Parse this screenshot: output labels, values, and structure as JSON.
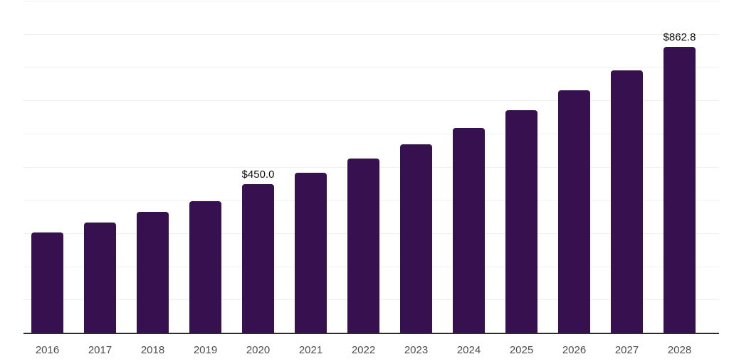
{
  "chart_data": {
    "type": "bar",
    "title": "",
    "xlabel": "",
    "ylabel": "",
    "categories": [
      "2016",
      "2017",
      "2018",
      "2019",
      "2020",
      "2021",
      "2022",
      "2023",
      "2024",
      "2025",
      "2026",
      "2027",
      "2028"
    ],
    "values": [
      304,
      334,
      366,
      399,
      450.0,
      483,
      526,
      570,
      619,
      672,
      732,
      793,
      862.8
    ],
    "value_labels": [
      "",
      "",
      "",
      "",
      "$450.0",
      "",
      "",
      "",
      "",
      "",
      "",
      "",
      "$862.8"
    ],
    "ylim": [
      0,
      1000
    ],
    "grid_step": 100,
    "grid": "horizontal",
    "legend": "none",
    "bar_color": "#37114f",
    "grid_color": "#f0f0f0",
    "axis_line_color": "#2b2b2b",
    "tick_label_color": "#4d4d4d",
    "data_label_color": "#0d0d0d",
    "background_color": "#ffffff"
  }
}
